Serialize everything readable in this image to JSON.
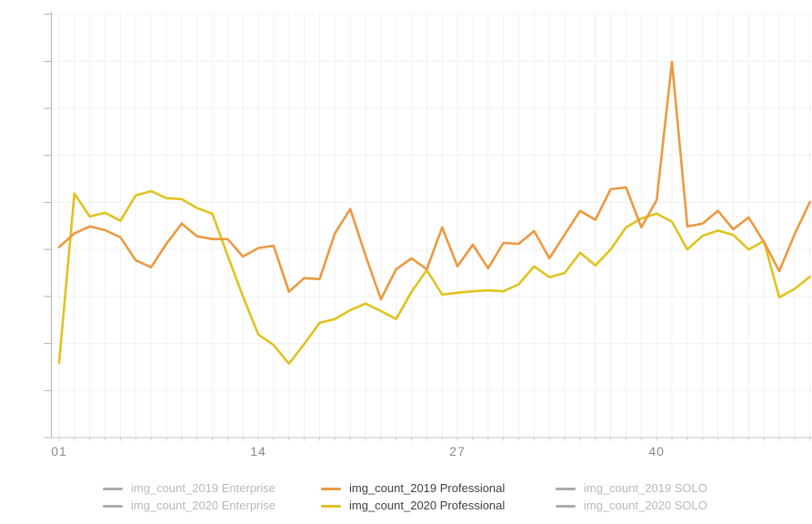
{
  "chart_data": {
    "type": "line",
    "title": "",
    "xlabel": "",
    "ylabel": "",
    "x_axis": {
      "unit": "week number",
      "tick_labels": [
        "01",
        "14",
        "27",
        "40"
      ],
      "tick_label_weeks": [
        1,
        14,
        27,
        40
      ],
      "weeks_shown": 50,
      "label_color": "#8a8a8a"
    },
    "y_axis": {
      "tick_labels_visible": false,
      "note": "axis shows 9 unlabeled gridline intervals; values below are in gridline units measured from the bottom axis",
      "ylim": [
        0,
        9.3
      ],
      "gridline_step": 1
    },
    "grid": true,
    "legend_position": "bottom",
    "series": [
      {
        "name": "img_count_2019 Enterprise",
        "enabled": false,
        "color": "#ababab",
        "text_color": "#b9b9b9",
        "values": []
      },
      {
        "name": "img_count_2019 Professional",
        "enabled": true,
        "color": "#EC9940",
        "text_color": "#3f3f3f",
        "values": [
          4.05,
          4.34,
          4.49,
          4.41,
          4.26,
          3.77,
          3.62,
          4.12,
          4.55,
          4.28,
          4.22,
          4.22,
          3.85,
          4.03,
          4.08,
          3.1,
          3.39,
          3.37,
          4.34,
          4.86,
          3.87,
          2.94,
          3.58,
          3.81,
          3.58,
          4.47,
          3.64,
          4.1,
          3.6,
          4.14,
          4.12,
          4.39,
          3.81,
          4.32,
          4.82,
          4.63,
          5.28,
          5.32,
          4.47,
          5.05,
          7.99,
          4.49,
          4.55,
          4.82,
          4.43,
          4.68,
          4.16,
          3.54,
          4.32,
          5.01
        ]
      },
      {
        "name": "img_count_2019 SOLO",
        "enabled": false,
        "color": "#ababab",
        "text_color": "#b9b9b9",
        "values": []
      },
      {
        "name": "img_count_2020 Enterprise",
        "enabled": false,
        "color": "#ababab",
        "text_color": "#b9b9b9",
        "values": []
      },
      {
        "name": "img_count_2020 Professional",
        "enabled": true,
        "color": "#E0C31E",
        "text_color": "#3f3f3f",
        "values": [
          1.59,
          5.19,
          4.7,
          4.78,
          4.61,
          5.15,
          5.24,
          5.09,
          5.07,
          4.88,
          4.76,
          3.87,
          3.0,
          2.19,
          1.97,
          1.57,
          1.99,
          2.44,
          2.52,
          2.71,
          2.85,
          2.69,
          2.52,
          3.1,
          3.56,
          3.04,
          3.08,
          3.11,
          3.13,
          3.11,
          3.26,
          3.64,
          3.41,
          3.5,
          3.93,
          3.66,
          4.0,
          4.47,
          4.66,
          4.76,
          4.59,
          4.0,
          4.29,
          4.4,
          4.31,
          4.0,
          4.18,
          2.98,
          3.16,
          3.42
        ]
      },
      {
        "name": "img_count_2020 SOLO",
        "enabled": false,
        "color": "#ababab",
        "text_color": "#b9b9b9",
        "values": []
      }
    ],
    "colors": {
      "gridline": "#f1f1f1",
      "y_axis_line": "#b3b3b3",
      "x_axis_line": "#c6c6c6",
      "y_tick": "#b3b3b3",
      "x_tick": "#cccccc"
    }
  },
  "legend_layout": {
    "columns": [
      {
        "row1_series": 0,
        "row2_series": 3
      },
      {
        "row1_series": 1,
        "row2_series": 4
      },
      {
        "row1_series": 2,
        "row2_series": 5
      }
    ]
  }
}
